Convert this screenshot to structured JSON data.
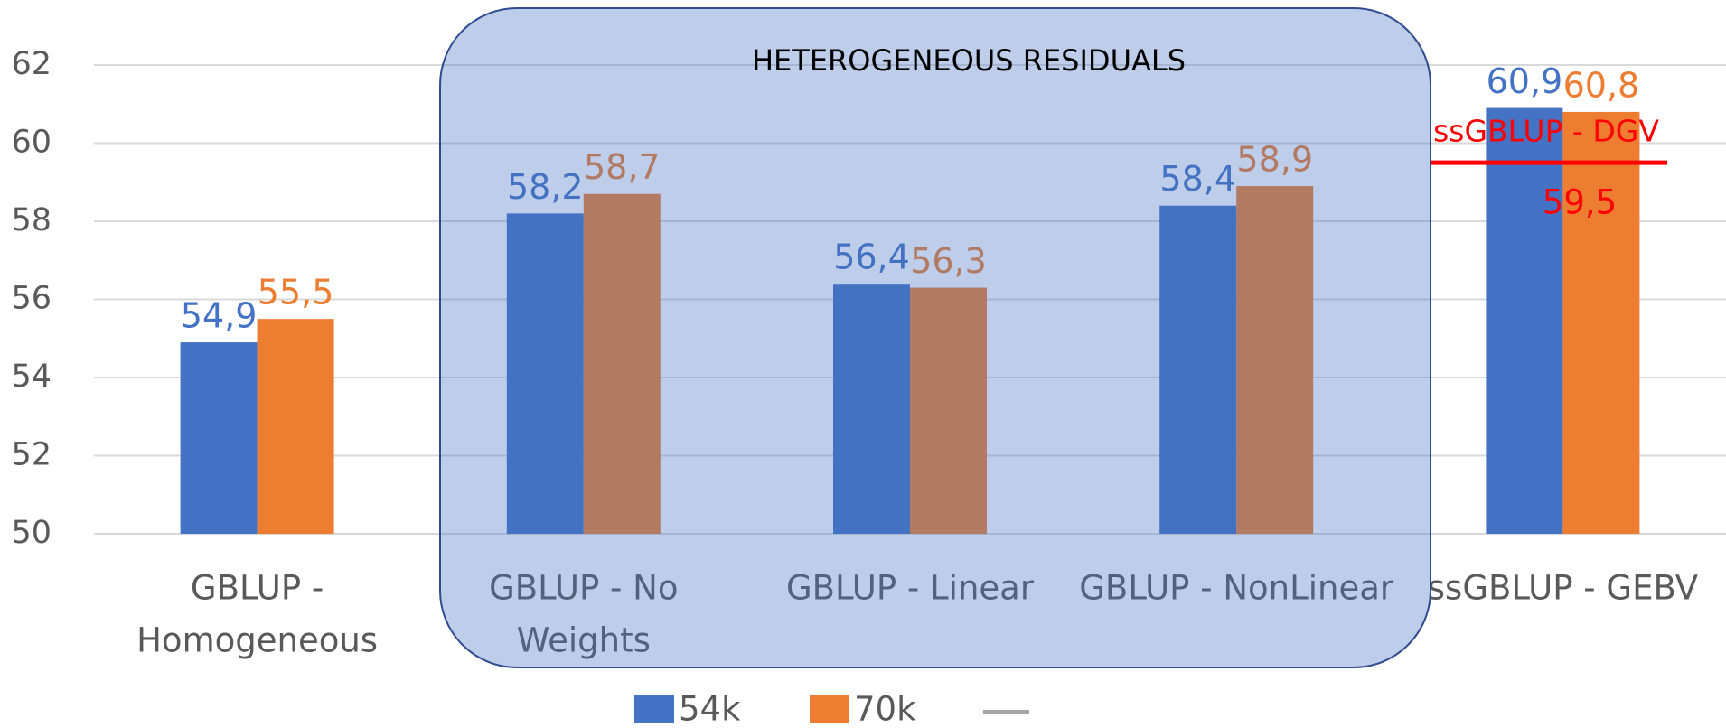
{
  "chart_data": {
    "type": "bar",
    "categories": [
      [
        "GBLUP -",
        "Homogeneous"
      ],
      [
        "GBLUP - No",
        "Weights"
      ],
      [
        "GBLUP - Linear"
      ],
      [
        "GBLUP - NonLinear"
      ],
      [
        "ssGBLUP - GEBV"
      ]
    ],
    "series": [
      {
        "name": "54k",
        "color": "#4472c4",
        "values": [
          54.9,
          58.2,
          56.4,
          58.4,
          60.9
        ],
        "value_labels": [
          "54,9",
          "58,2",
          "56,4",
          "58,4",
          "60,9"
        ]
      },
      {
        "name": "70k",
        "color": "#ed7d31",
        "values": [
          55.5,
          58.7,
          56.3,
          58.9,
          60.8
        ],
        "value_labels": [
          "55,5",
          "58,7",
          "56,3",
          "58,9",
          "60,8"
        ]
      }
    ],
    "ylim": [
      50,
      62
    ],
    "yticks": [
      50,
      52,
      54,
      56,
      58,
      60,
      62
    ],
    "grid": true,
    "reference_line": {
      "label": "ssGBLUP - DGV",
      "value": 59.5,
      "value_label": "59,5",
      "color": "#ff0000"
    },
    "annotation": "HETEROGENEOUS RESIDUALS"
  }
}
